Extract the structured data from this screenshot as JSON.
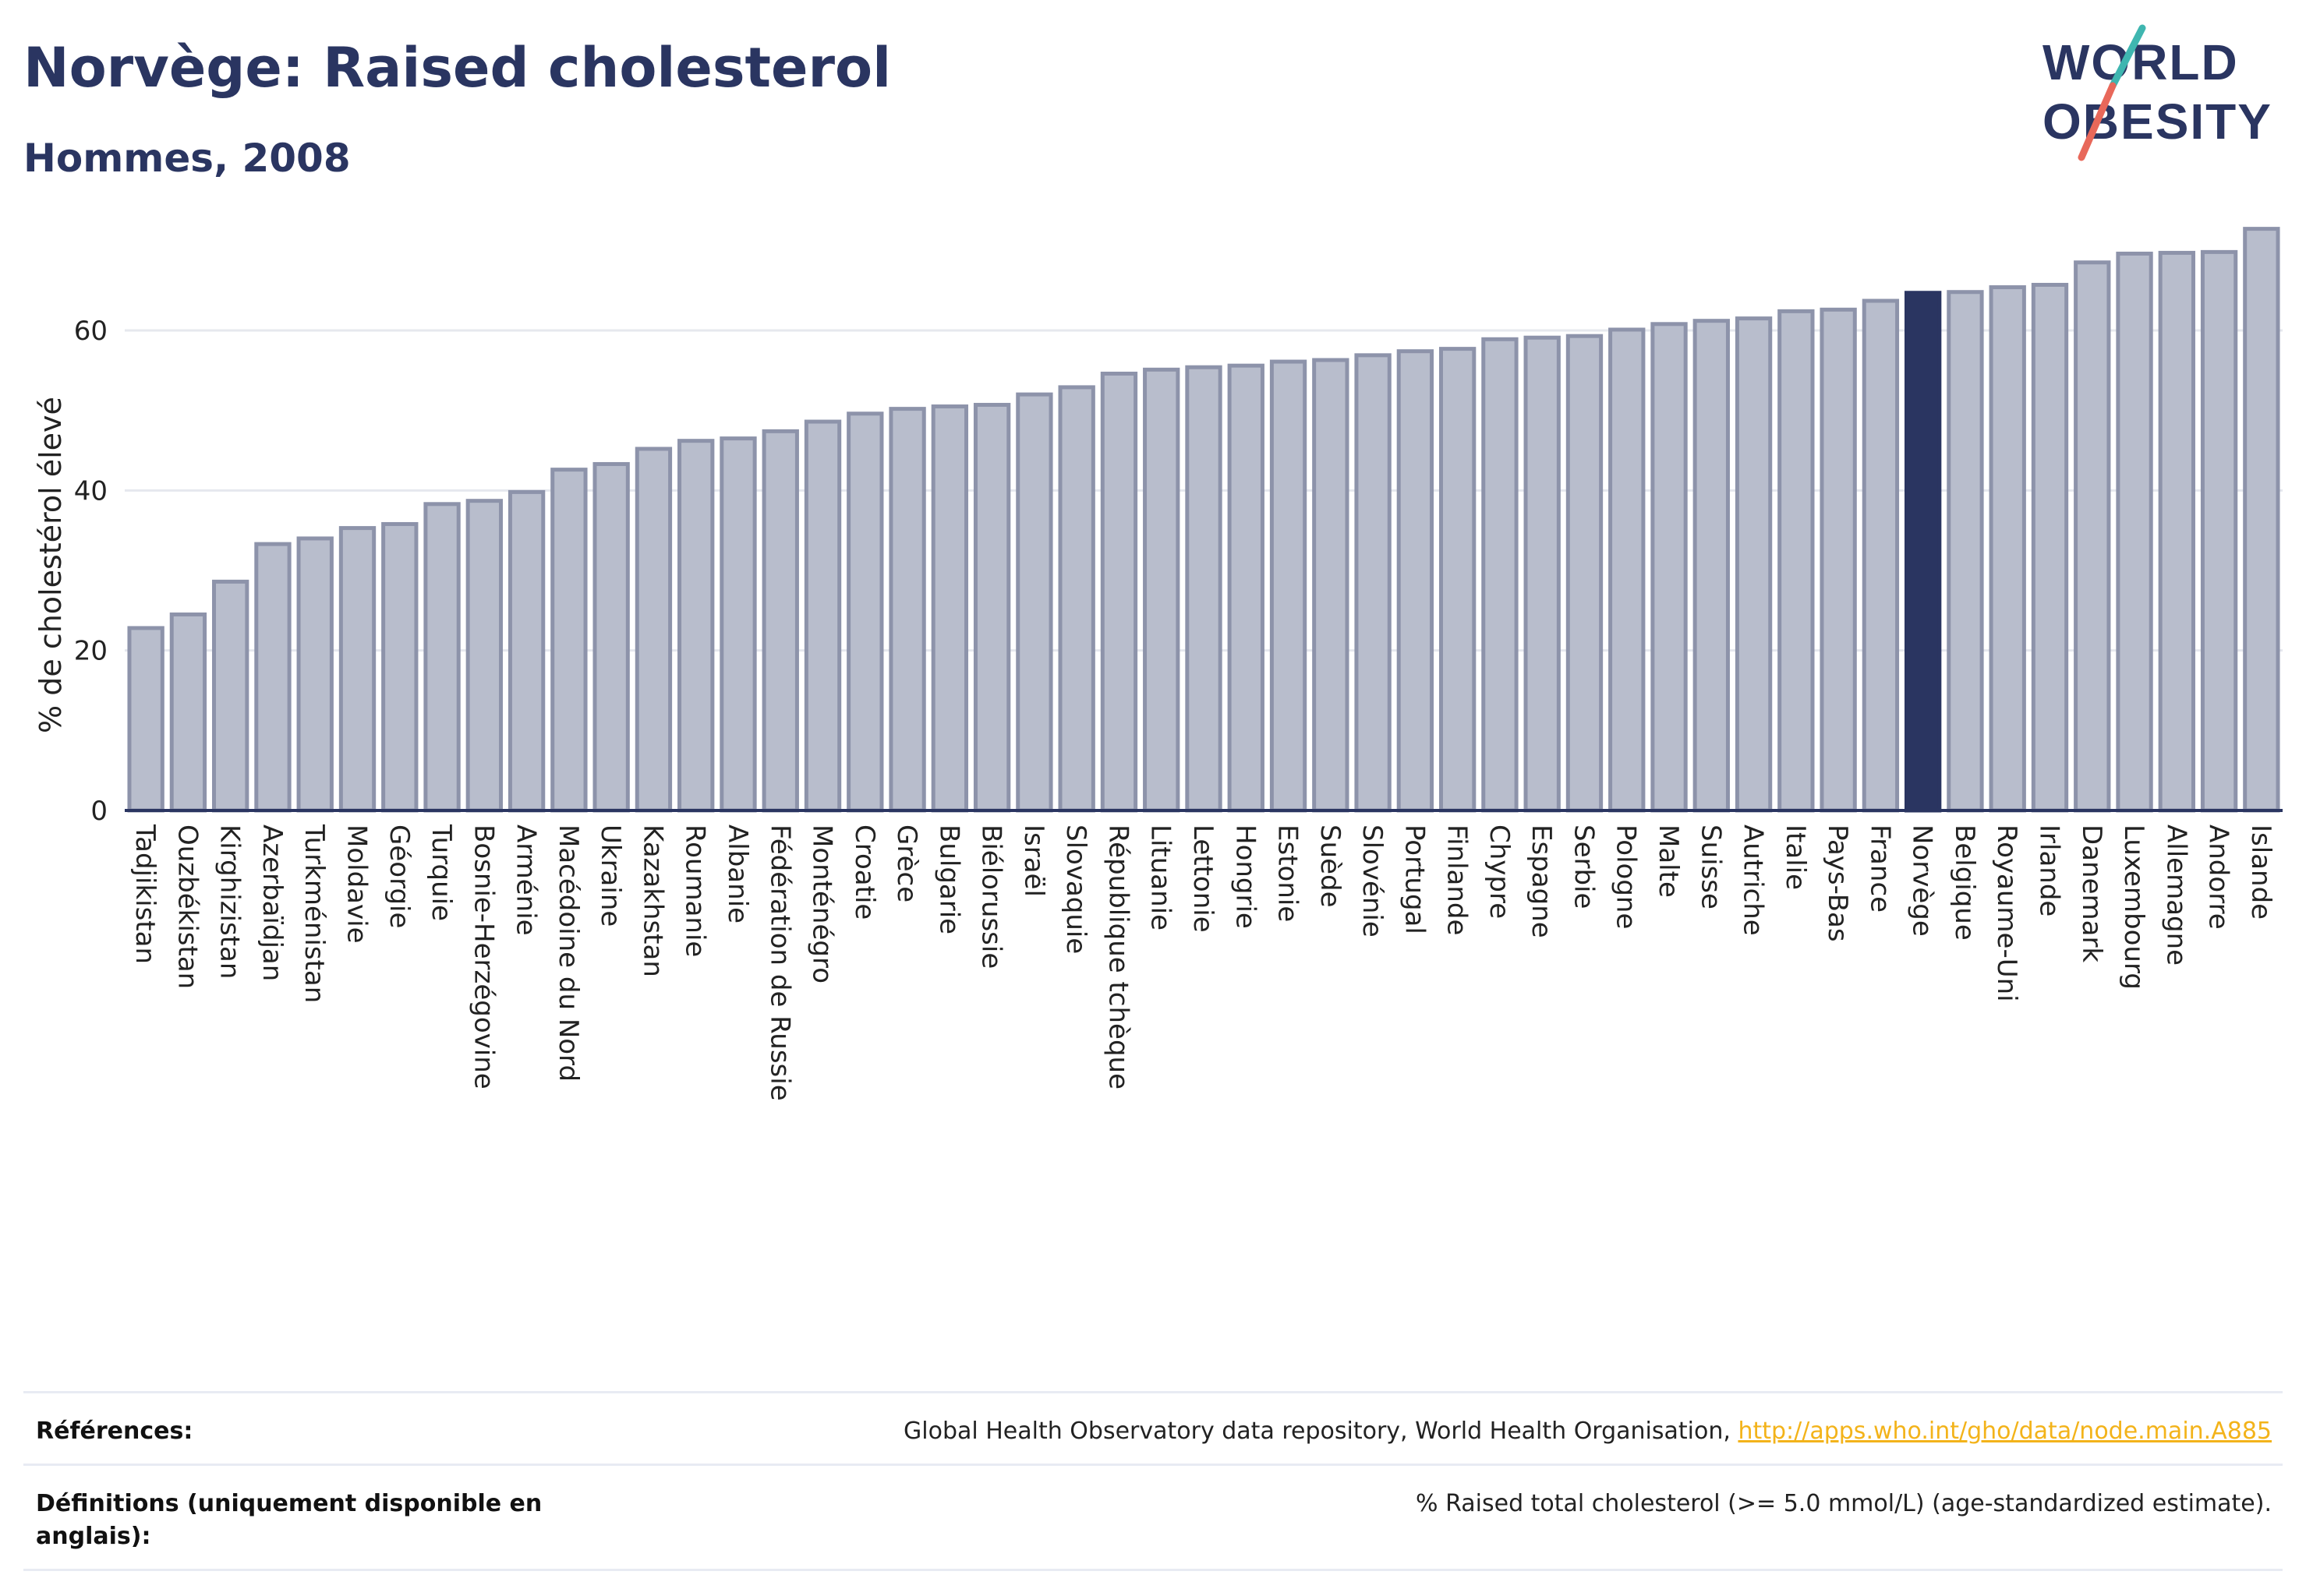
{
  "header": {
    "title": "Norvège: Raised cholesterol",
    "subtitle": "Hommes, 2008"
  },
  "logo": {
    "line1": "WORLD",
    "line2": "OBESITY",
    "colors": {
      "text": "#2a3561",
      "slash_teal": "#3fb6b0",
      "slash_red": "#e8685a"
    }
  },
  "colors": {
    "bar_default": "#b8bdcc",
    "bar_stroke": "#8d93aa",
    "bar_highlight": "#2a3561",
    "axis_text": "#222222",
    "grid": "#e6e8ee"
  },
  "chart_data": {
    "type": "bar",
    "ylabel": "% de cholestérol élevé",
    "ylim": [
      0,
      75
    ],
    "yticks": [
      0,
      20,
      40,
      60
    ],
    "grid": true,
    "highlight": "Norvège",
    "categories": [
      "Tadjikistan",
      "Ouzbékistan",
      "Kirghizistan",
      "Azerbaïdjan",
      "Turkménistan",
      "Moldavie",
      "Géorgie",
      "Turquie",
      "Bosnie-Herzégovine",
      "Arménie",
      "Macédoine du Nord",
      "Ukraine",
      "Kazakhstan",
      "Roumanie",
      "Albanie",
      "Fédération de Russie",
      "Monténégro",
      "Croatie",
      "Grèce",
      "Bulgarie",
      "Biélorussie",
      "Israël",
      "Slovaquie",
      "République tchèque",
      "Lituanie",
      "Lettonie",
      "Hongrie",
      "Estonie",
      "Suède",
      "Slovénie",
      "Portugal",
      "Finlande",
      "Chypre",
      "Espagne",
      "Serbie",
      "Pologne",
      "Malte",
      "Suisse",
      "Autriche",
      "Italie",
      "Pays-Bas",
      "France",
      "Norvège",
      "Belgique",
      "Royaume-Uni",
      "Irlande",
      "Danemark",
      "Luxembourg",
      "Allemagne",
      "Andorre",
      "Islande"
    ],
    "values": [
      22.8,
      24.5,
      28.6,
      33.3,
      34.0,
      35.3,
      35.8,
      38.3,
      38.7,
      39.8,
      42.6,
      43.3,
      45.2,
      46.2,
      46.5,
      47.4,
      48.6,
      49.6,
      50.2,
      50.5,
      50.7,
      52.0,
      52.9,
      54.6,
      55.1,
      55.4,
      55.6,
      56.1,
      56.3,
      56.9,
      57.4,
      57.7,
      58.9,
      59.1,
      59.3,
      60.1,
      60.8,
      61.2,
      61.5,
      62.4,
      62.6,
      63.7,
      64.7,
      64.8,
      65.4,
      65.7,
      68.5,
      69.6,
      69.7,
      69.8,
      72.7
    ]
  },
  "references": [
    {
      "label": "Références:",
      "text": "Global Health Observatory data repository, World Health Organisation, ",
      "link": "http://apps.who.int/gho/data/node.main.A885"
    },
    {
      "label": "Définitions (uniquement disponible en anglais):",
      "text": "% Raised total cholesterol (>= 5.0 mmol/L) (age-standardized estimate).",
      "link": ""
    }
  ]
}
